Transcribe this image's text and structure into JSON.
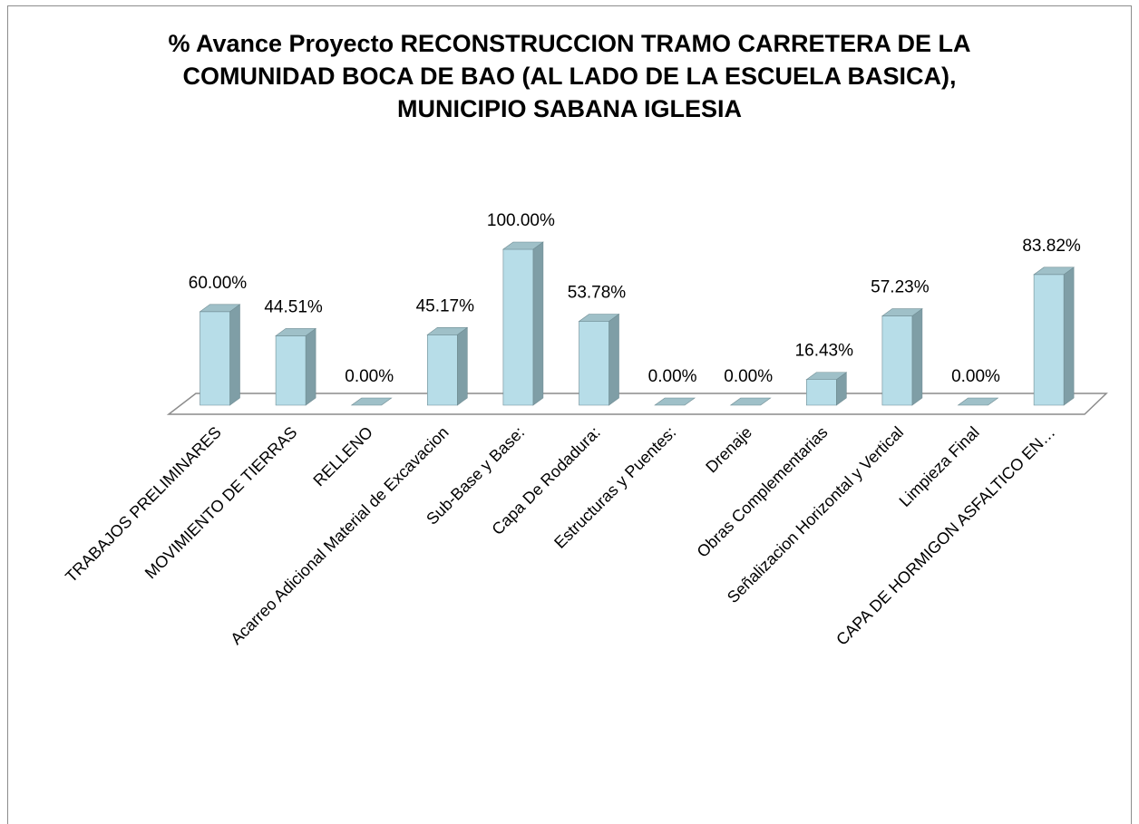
{
  "chart_data": {
    "type": "bar3d",
    "title": "% Avance Proyecto RECONSTRUCCION TRAMO CARRETERA DE LA COMUNIDAD BOCA DE BAO (AL LADO DE LA ESCUELA BASICA), MUNICIPIO SABANA IGLESIA",
    "categories": [
      "TRABAJOS PRELIMINARES",
      "MOVIMIENTO DE TIERRAS",
      "RELLENO",
      "Acarreo Adicional Material de Excavacion",
      "Sub-Base y Base:",
      "Capa De Rodadura:",
      "Estructuras y Puentes:",
      "Drenaje",
      "Obras Complementarias",
      "Señalizacion Horizontal y Vertical",
      "Limpieza Final",
      "CAPA DE HORMIGON ASFALTICO EN…"
    ],
    "values": [
      60,
      44.51,
      0,
      45.17,
      100,
      53.78,
      0,
      0,
      16.43,
      57.23,
      0,
      83.82
    ],
    "value_labels": [
      "60.00%",
      "44.51%",
      "0.00%",
      "45.17%",
      "100.00%",
      "53.78%",
      "0.00%",
      "0.00%",
      "16.43%",
      "57.23%",
      "0.00%",
      "83.82%"
    ],
    "color": "#b7dde8"
  }
}
